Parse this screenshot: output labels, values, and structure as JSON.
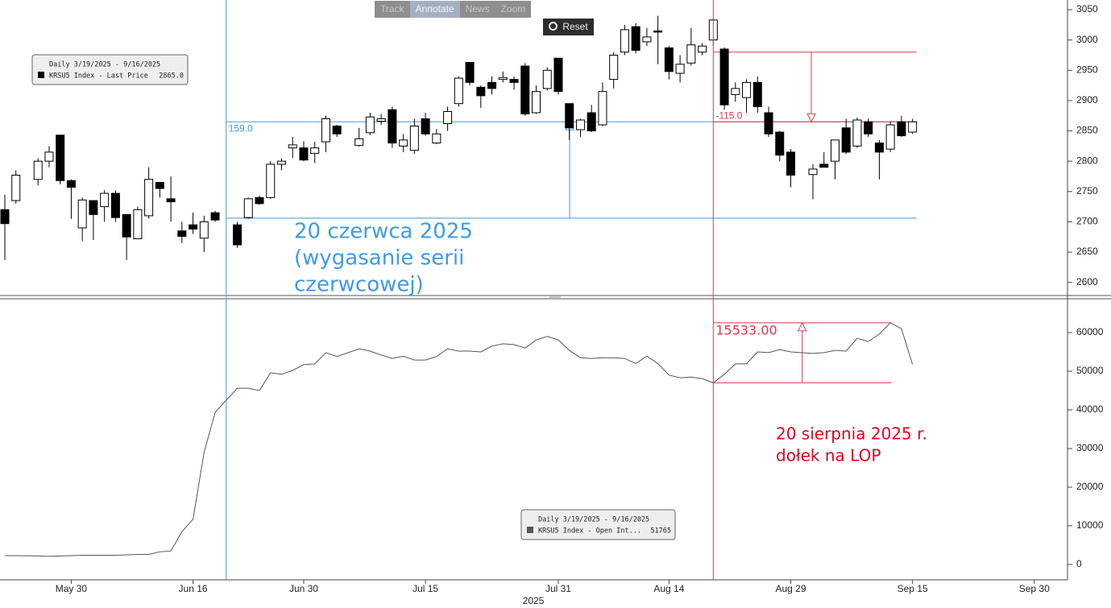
{
  "toolbar": {
    "buttons": [
      "Track",
      "Annotate",
      "News",
      "Zoom"
    ],
    "reset": "Reset"
  },
  "chart_data": [
    {
      "type": "candlestick",
      "x": [
        "2025-05-22",
        "2025-05-23",
        "2025-05-27",
        "2025-05-28",
        "2025-05-29",
        "2025-05-30",
        "2025-06-02",
        "2025-06-03",
        "2025-06-04",
        "2025-06-05",
        "2025-06-06",
        "2025-06-09",
        "2025-06-10",
        "2025-06-11",
        "2025-06-12",
        "2025-06-13",
        "2025-06-16",
        "2025-06-17",
        "2025-06-18",
        "2025-06-20",
        "2025-06-23",
        "2025-06-24",
        "2025-06-25",
        "2025-06-26",
        "2025-06-27",
        "2025-06-30",
        "2025-07-01",
        "2025-07-02",
        "2025-07-03",
        "2025-07-07",
        "2025-07-08",
        "2025-07-09",
        "2025-07-10",
        "2025-07-11",
        "2025-07-14",
        "2025-07-15",
        "2025-07-16",
        "2025-07-17",
        "2025-07-18",
        "2025-07-21",
        "2025-07-22",
        "2025-07-23",
        "2025-07-24",
        "2025-07-25",
        "2025-07-28",
        "2025-07-29",
        "2025-07-30",
        "2025-07-31",
        "2025-08-01",
        "2025-08-04",
        "2025-08-05",
        "2025-08-06",
        "2025-08-07",
        "2025-08-08",
        "2025-08-11",
        "2025-08-12",
        "2025-08-13",
        "2025-08-14",
        "2025-08-15",
        "2025-08-18",
        "2025-08-19",
        "2025-08-20",
        "2025-08-21",
        "2025-08-22",
        "2025-08-25",
        "2025-08-26",
        "2025-08-27",
        "2025-08-28",
        "2025-08-29",
        "2025-09-02",
        "2025-09-03",
        "2025-09-04",
        "2025-09-05",
        "2025-09-08",
        "2025-09-09",
        "2025-09-10",
        "2025-09-11",
        "2025-09-12",
        "2025-09-15"
      ],
      "open": [
        2720,
        2735,
        2770,
        2800,
        2843,
        2768,
        2690,
        2735,
        2725,
        2747,
        2712,
        2672,
        2710,
        2765,
        2738,
        2685,
        2695,
        2673,
        2715,
        2695,
        2707,
        2740,
        2740,
        2795,
        2822,
        2822,
        2813,
        2832,
        2858,
        2826,
        2847,
        2866,
        2885,
        2825,
        2818,
        2870,
        2830,
        2862,
        2895,
        2963,
        2922,
        2930,
        2935,
        2935,
        2957,
        2880,
        2920,
        2970,
        2895,
        2852,
        2880,
        2860,
        2935,
        2980,
        3022,
        2997,
        3015,
        2987,
        2945,
        2962,
        2980,
        3000,
        2985,
        2910,
        2905,
        2930,
        2880,
        2848,
        2815,
        2778,
        2795,
        2800,
        2855,
        2825,
        2865,
        2830,
        2820,
        2865,
        2848
      ],
      "high": [
        2745,
        2785,
        2805,
        2825,
        2843,
        2770,
        2740,
        2735,
        2752,
        2752,
        2712,
        2725,
        2790,
        2765,
        2775,
        2700,
        2715,
        2710,
        2718,
        2700,
        2740,
        2743,
        2800,
        2805,
        2840,
        2833,
        2832,
        2875,
        2860,
        2855,
        2880,
        2878,
        2890,
        2845,
        2870,
        2880,
        2853,
        2890,
        2940,
        2963,
        2925,
        2940,
        2948,
        2940,
        2962,
        2925,
        2955,
        2970,
        2895,
        2870,
        2893,
        2930,
        2980,
        3025,
        3028,
        3020,
        3040,
        2990,
        2975,
        3020,
        2995,
        3037,
        2988,
        2930,
        2935,
        2940,
        2890,
        2850,
        2820,
        2795,
        2815,
        2835,
        2870,
        2872,
        2870,
        2835,
        2865,
        2875,
        2870
      ],
      "low": [
        2637,
        2730,
        2760,
        2790,
        2762,
        2705,
        2668,
        2670,
        2700,
        2700,
        2637,
        2672,
        2705,
        2740,
        2700,
        2665,
        2680,
        2650,
        2700,
        2657,
        2705,
        2728,
        2738,
        2785,
        2805,
        2800,
        2797,
        2815,
        2840,
        2824,
        2843,
        2860,
        2822,
        2815,
        2812,
        2842,
        2828,
        2850,
        2890,
        2925,
        2888,
        2910,
        2930,
        2918,
        2875,
        2878,
        2917,
        2910,
        2835,
        2840,
        2848,
        2858,
        2920,
        2975,
        2978,
        2990,
        2960,
        2935,
        2930,
        2958,
        2975,
        2990,
        2885,
        2898,
        2880,
        2880,
        2840,
        2800,
        2757,
        2737,
        2790,
        2770,
        2812,
        2822,
        2840,
        2770,
        2815,
        2840,
        2845
      ],
      "close": [
        2697,
        2777,
        2800,
        2815,
        2768,
        2757,
        2736,
        2712,
        2747,
        2707,
        2675,
        2720,
        2770,
        2755,
        2733,
        2676,
        2688,
        2700,
        2703,
        2662,
        2738,
        2730,
        2795,
        2800,
        2827,
        2802,
        2822,
        2870,
        2845,
        2837,
        2873,
        2870,
        2830,
        2835,
        2858,
        2845,
        2845,
        2882,
        2937,
        2930,
        2908,
        2920,
        2938,
        2930,
        2878,
        2915,
        2950,
        2915,
        2855,
        2868,
        2850,
        2915,
        2975,
        3017,
        2983,
        3005,
        3013,
        2948,
        2960,
        2992,
        2990,
        3033,
        2893,
        2920,
        2930,
        2890,
        2845,
        2810,
        2777,
        2787,
        2790,
        2835,
        2815,
        2868,
        2845,
        2815,
        2860,
        2842,
        2865
      ],
      "color_up": "#ffffff",
      "color_down": "#000000",
      "xlim": [
        "2025-05-22",
        "2025-10-03"
      ],
      "ylim": [
        2577,
        3066
      ],
      "yticks": [
        2600,
        2650,
        2700,
        2750,
        2800,
        2850,
        2900,
        2950,
        3000,
        3050
      ],
      "legend": {
        "title": "Daily 3/19/2025 - 9/16/2025",
        "name": "KRSU5 Index - Last Price",
        "value": {
          "value": 2865,
          "label": "2865.0"
        }
      },
      "levels": [
        {
          "start": "2025-06-19",
          "from": 2706,
          "delta": {
            "value": 159,
            "label": "159.0"
          },
          "color": "#3d9be9"
        },
        {
          "start": "2025-08-20",
          "from": 2980,
          "delta": {
            "value": -115,
            "label": "-115.0"
          },
          "color": "#e8344a"
        }
      ],
      "annotation": {
        "lines": [
          "20 czerwca 2025",
          "(wygasanie serii",
          "czerwcowej)"
        ],
        "color": "#3d9be9"
      }
    },
    {
      "type": "line",
      "x": [
        "2025-05-22",
        "2025-05-23",
        "2025-05-27",
        "2025-05-28",
        "2025-05-29",
        "2025-05-30",
        "2025-06-02",
        "2025-06-03",
        "2025-06-04",
        "2025-06-05",
        "2025-06-06",
        "2025-06-09",
        "2025-06-10",
        "2025-06-11",
        "2025-06-12",
        "2025-06-13",
        "2025-06-16",
        "2025-06-17",
        "2025-06-18",
        "2025-06-20",
        "2025-06-23",
        "2025-06-24",
        "2025-06-25",
        "2025-06-26",
        "2025-06-27",
        "2025-06-30",
        "2025-07-01",
        "2025-07-02",
        "2025-07-03",
        "2025-07-07",
        "2025-07-08",
        "2025-07-09",
        "2025-07-10",
        "2025-07-11",
        "2025-07-14",
        "2025-07-15",
        "2025-07-16",
        "2025-07-17",
        "2025-07-18",
        "2025-07-21",
        "2025-07-22",
        "2025-07-23",
        "2025-07-24",
        "2025-07-25",
        "2025-07-28",
        "2025-07-29",
        "2025-07-30",
        "2025-07-31",
        "2025-08-01",
        "2025-08-04",
        "2025-08-05",
        "2025-08-06",
        "2025-08-07",
        "2025-08-08",
        "2025-08-11",
        "2025-08-12",
        "2025-08-13",
        "2025-08-14",
        "2025-08-15",
        "2025-08-18",
        "2025-08-19",
        "2025-08-20",
        "2025-08-21",
        "2025-08-22",
        "2025-08-25",
        "2025-08-26",
        "2025-08-27",
        "2025-08-28",
        "2025-08-29",
        "2025-09-02",
        "2025-09-03",
        "2025-09-04",
        "2025-09-05",
        "2025-09-08",
        "2025-09-09",
        "2025-09-10",
        "2025-09-11",
        "2025-09-12",
        "2025-09-15"
      ],
      "values": [
        2300,
        2300,
        2200,
        2100,
        2200,
        2300,
        2400,
        2400,
        2400,
        2400,
        2500,
        2600,
        2600,
        3300,
        3500,
        8500,
        11700,
        29000,
        39400,
        45600,
        45600,
        45000,
        49600,
        49200,
        50200,
        51700,
        51900,
        54800,
        53800,
        55800,
        55200,
        54200,
        53300,
        53900,
        52900,
        52900,
        53800,
        55800,
        55200,
        55200,
        55000,
        56500,
        57100,
        56900,
        56000,
        58100,
        59000,
        58100,
        55400,
        53500,
        53300,
        53500,
        53500,
        53300,
        52000,
        53900,
        52000,
        49000,
        48300,
        48500,
        48100,
        47000,
        49200,
        51900,
        51900,
        55000,
        54800,
        55600,
        55000,
        54600,
        54800,
        55400,
        55200,
        58500,
        57700,
        59600,
        62533,
        61000,
        51765
      ],
      "color": "#555555",
      "xlim": [
        "2025-05-22",
        "2025-10-03"
      ],
      "ylim": [
        -3960,
        68330
      ],
      "yticks": [
        0,
        10000,
        20000,
        30000,
        40000,
        50000,
        60000
      ],
      "xticks": [
        {
          "value": "2025-05-30",
          "label": "May 30"
        },
        {
          "value": "2025-06-16",
          "label": "Jun 16"
        },
        {
          "value": "2025-06-30",
          "label": "Jun 30"
        },
        {
          "value": "2025-07-15",
          "label": "Jul 15"
        },
        {
          "value": "2025-07-31",
          "label": "Jul 31"
        },
        {
          "value": "2025-08-14",
          "label": "Aug 14"
        },
        {
          "value": "2025-08-29",
          "label": "Aug 29"
        },
        {
          "value": "2025-09-15",
          "label": "Sep 15"
        },
        {
          "value": "2025-09-30",
          "label": "Sep 30"
        }
      ],
      "x_year_label": "2025",
      "legend": {
        "title": "Daily 3/19/2025 - 9/16/2025",
        "name": "KRSU5 Index - Open Int...",
        "value": 51765
      },
      "range": {
        "start": "2025-08-20",
        "end": "2025-09-11",
        "from": 47000,
        "delta": {
          "value": 15533,
          "label": "15533.00"
        },
        "color": "#e8344a"
      },
      "annotation": {
        "lines": [
          "20 sierpnia 2025 r.",
          "dołek na LOP"
        ],
        "color": "#e8001c"
      }
    }
  ]
}
